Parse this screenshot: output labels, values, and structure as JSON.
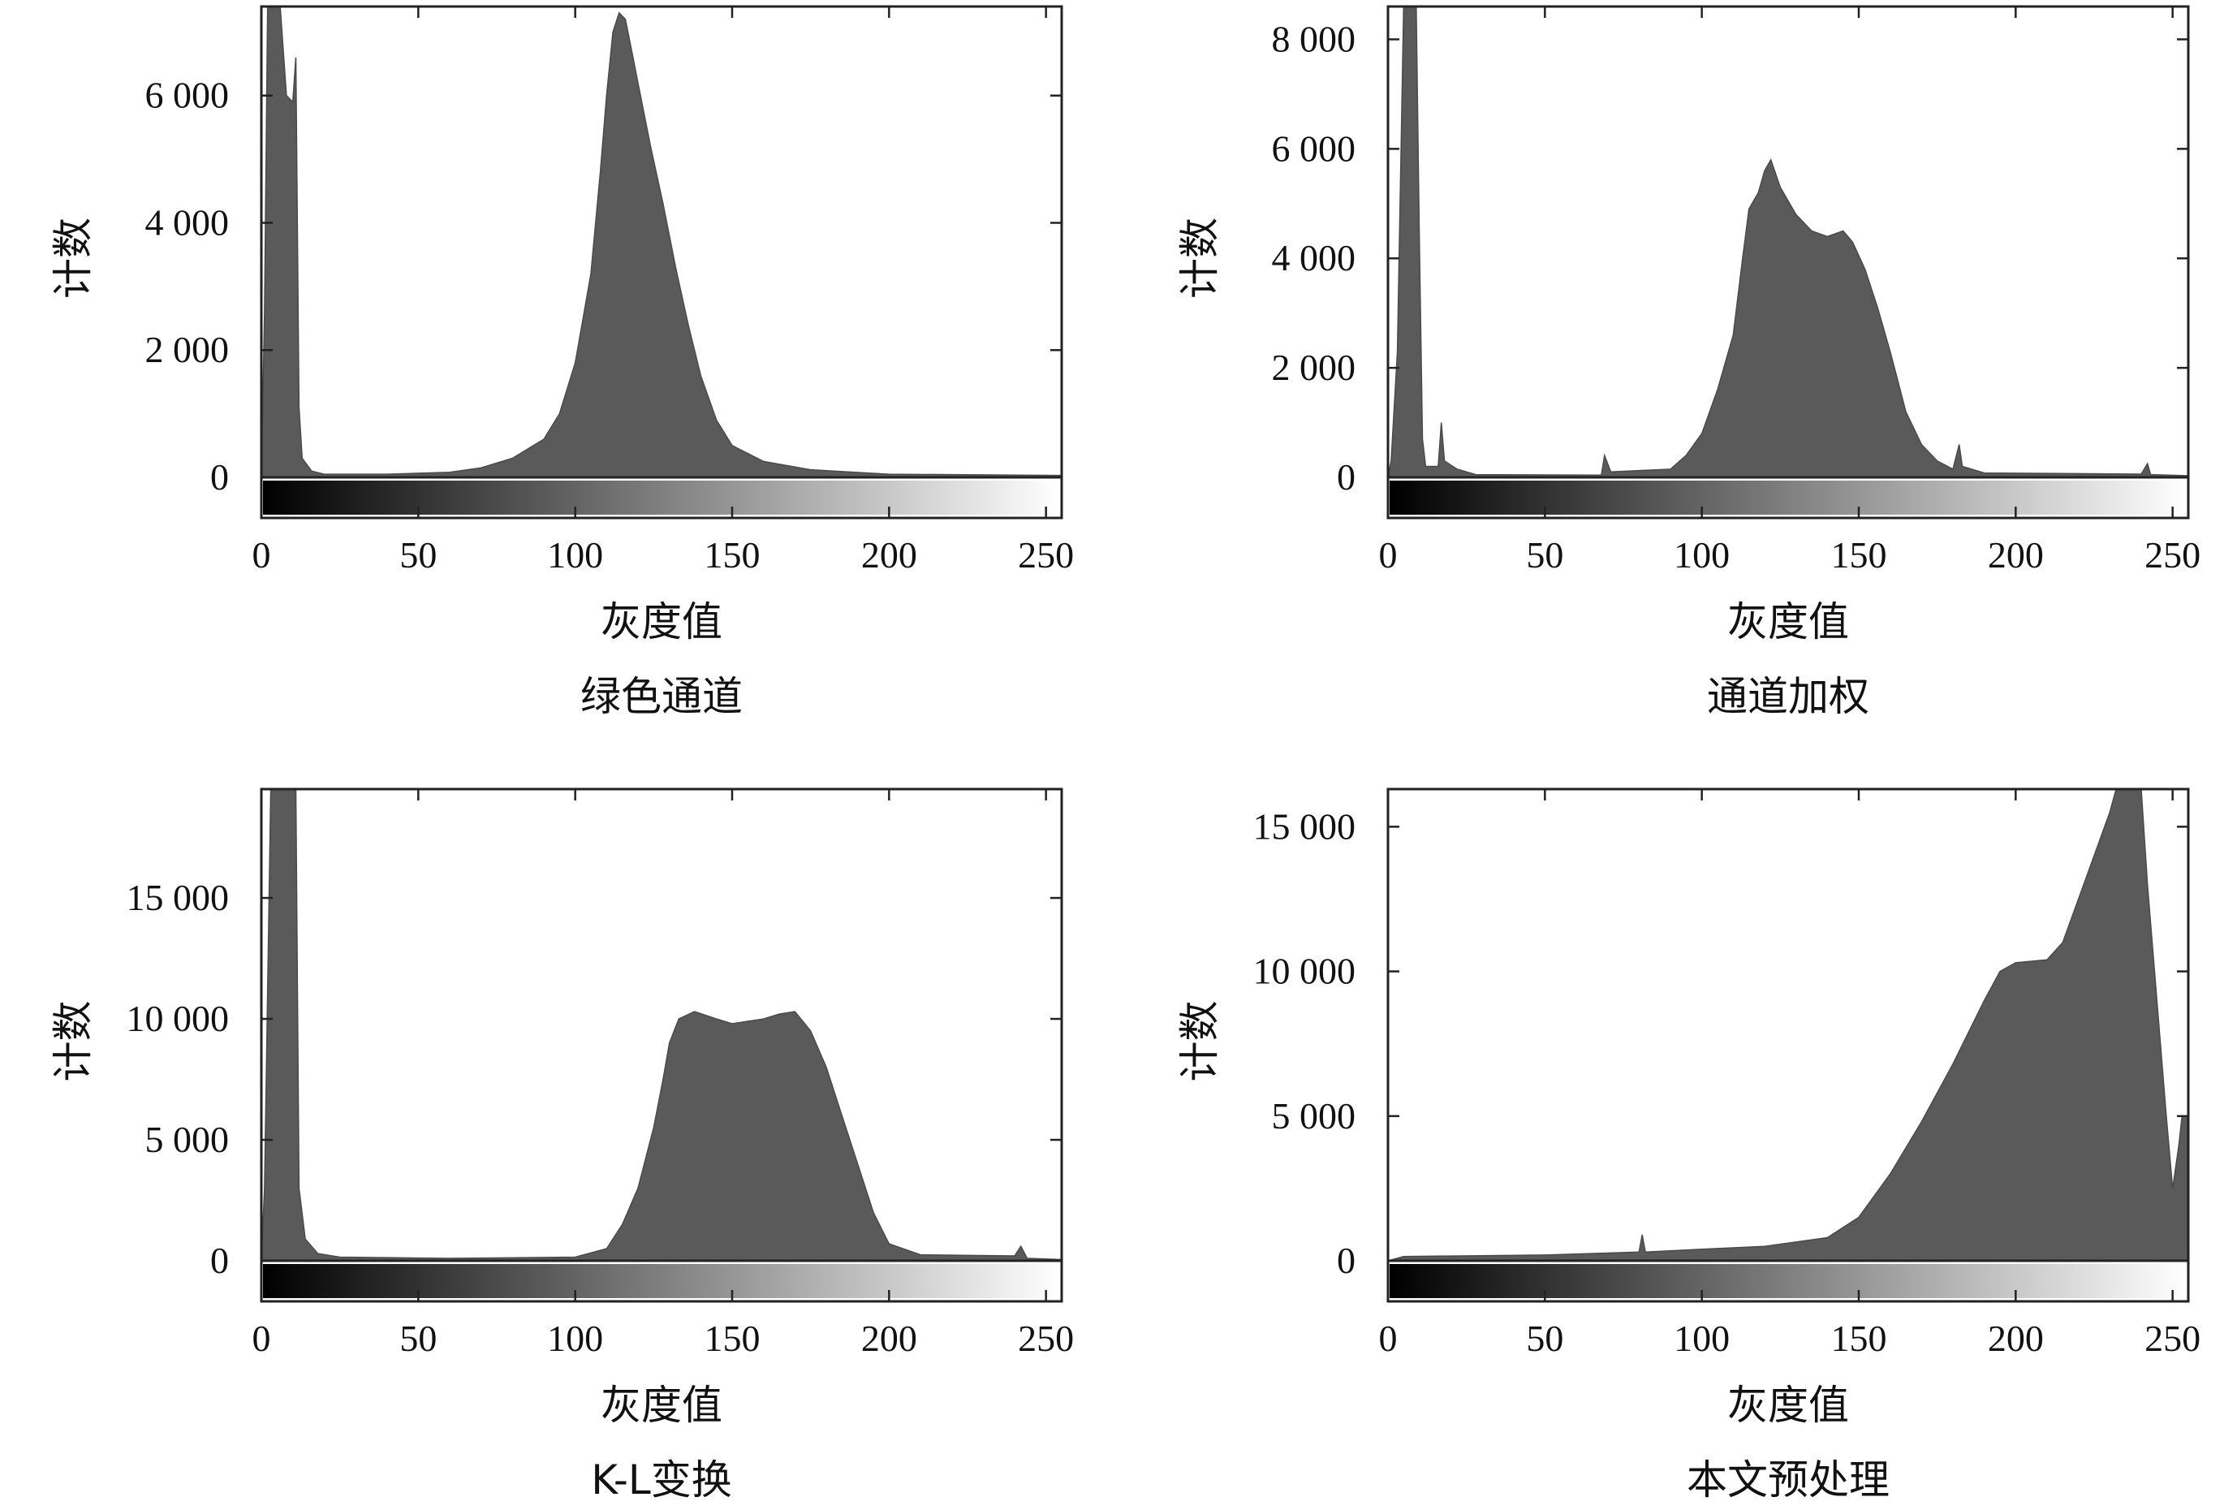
{
  "chart_data": [
    {
      "type": "bar",
      "caption": "绿色通道",
      "xlabel": "灰度值",
      "ylabel": "计数",
      "xlim": [
        0,
        255
      ],
      "ylim": [
        0,
        7400
      ],
      "xticks": [
        "0",
        "50",
        "100",
        "150",
        "200",
        "250"
      ],
      "yticks": [
        {
          "value": 0,
          "label": "0"
        },
        {
          "value": 2000,
          "label": "2 000"
        },
        {
          "value": 4000,
          "label": "4 000"
        },
        {
          "value": 6000,
          "label": "6 000"
        }
      ],
      "profile": [
        [
          0,
          0
        ],
        [
          1,
          2600
        ],
        [
          2,
          7400
        ],
        [
          6,
          7400
        ],
        [
          8,
          6000
        ],
        [
          10,
          5900
        ],
        [
          11,
          6600
        ],
        [
          12,
          1100
        ],
        [
          13,
          300
        ],
        [
          16,
          100
        ],
        [
          20,
          50
        ],
        [
          40,
          50
        ],
        [
          60,
          80
        ],
        [
          70,
          150
        ],
        [
          80,
          300
        ],
        [
          90,
          600
        ],
        [
          95,
          1000
        ],
        [
          100,
          1800
        ],
        [
          105,
          3200
        ],
        [
          108,
          4800
        ],
        [
          110,
          6000
        ],
        [
          112,
          7000
        ],
        [
          114,
          7300
        ],
        [
          116,
          7200
        ],
        [
          118,
          6700
        ],
        [
          120,
          6200
        ],
        [
          124,
          5200
        ],
        [
          128,
          4300
        ],
        [
          132,
          3300
        ],
        [
          136,
          2400
        ],
        [
          140,
          1600
        ],
        [
          145,
          900
        ],
        [
          150,
          500
        ],
        [
          160,
          250
        ],
        [
          175,
          120
        ],
        [
          200,
          50
        ],
        [
          255,
          30
        ]
      ]
    },
    {
      "type": "bar",
      "caption": "通道加权",
      "xlabel": "灰度值",
      "ylabel": "计数",
      "xlim": [
        0,
        255
      ],
      "ylim": [
        0,
        8600
      ],
      "xticks": [
        "0",
        "50",
        "100",
        "150",
        "200",
        "250"
      ],
      "yticks": [
        {
          "value": 0,
          "label": "0"
        },
        {
          "value": 2000,
          "label": "2 000"
        },
        {
          "value": 4000,
          "label": "4 000"
        },
        {
          "value": 6000,
          "label": "6 000"
        },
        {
          "value": 8000,
          "label": "8 000"
        }
      ],
      "profile": [
        [
          0,
          0
        ],
        [
          1,
          300
        ],
        [
          3,
          2300
        ],
        [
          5,
          8600
        ],
        [
          9,
          8600
        ],
        [
          10,
          4300
        ],
        [
          11,
          700
        ],
        [
          12,
          200
        ],
        [
          16,
          200
        ],
        [
          17,
          1000
        ],
        [
          18,
          300
        ],
        [
          22,
          150
        ],
        [
          28,
          50
        ],
        [
          68,
          40
        ],
        [
          69,
          400
        ],
        [
          71,
          100
        ],
        [
          90,
          150
        ],
        [
          95,
          400
        ],
        [
          100,
          800
        ],
        [
          105,
          1600
        ],
        [
          110,
          2600
        ],
        [
          113,
          4000
        ],
        [
          115,
          4900
        ],
        [
          118,
          5200
        ],
        [
          120,
          5600
        ],
        [
          122,
          5800
        ],
        [
          125,
          5300
        ],
        [
          130,
          4800
        ],
        [
          135,
          4500
        ],
        [
          140,
          4400
        ],
        [
          145,
          4500
        ],
        [
          148,
          4300
        ],
        [
          152,
          3800
        ],
        [
          156,
          3100
        ],
        [
          160,
          2300
        ],
        [
          165,
          1200
        ],
        [
          170,
          600
        ],
        [
          175,
          300
        ],
        [
          180,
          150
        ],
        [
          182,
          600
        ],
        [
          183,
          200
        ],
        [
          190,
          80
        ],
        [
          240,
          60
        ],
        [
          242,
          250
        ],
        [
          243,
          50
        ],
        [
          255,
          30
        ]
      ]
    },
    {
      "type": "bar",
      "caption": "K-L变换",
      "xlabel": "灰度值",
      "ylabel": "计数",
      "xlim": [
        0,
        255
      ],
      "ylim": [
        0,
        19500
      ],
      "xticks": [
        "0",
        "50",
        "100",
        "150",
        "200",
        "250"
      ],
      "yticks": [
        {
          "value": 0,
          "label": "0"
        },
        {
          "value": 5000,
          "label": "5 000"
        },
        {
          "value": 10000,
          "label": "10 000"
        },
        {
          "value": 15000,
          "label": "15 000"
        }
      ],
      "profile": [
        [
          0,
          0
        ],
        [
          1,
          3000
        ],
        [
          3,
          19500
        ],
        [
          11,
          19500
        ],
        [
          12,
          3000
        ],
        [
          14,
          900
        ],
        [
          18,
          300
        ],
        [
          25,
          150
        ],
        [
          60,
          100
        ],
        [
          100,
          150
        ],
        [
          110,
          500
        ],
        [
          115,
          1500
        ],
        [
          120,
          3000
        ],
        [
          125,
          5500
        ],
        [
          128,
          7500
        ],
        [
          130,
          9000
        ],
        [
          133,
          10000
        ],
        [
          138,
          10300
        ],
        [
          145,
          10000
        ],
        [
          150,
          9800
        ],
        [
          155,
          9900
        ],
        [
          160,
          10000
        ],
        [
          165,
          10200
        ],
        [
          170,
          10300
        ],
        [
          175,
          9500
        ],
        [
          180,
          8000
        ],
        [
          185,
          6000
        ],
        [
          190,
          4000
        ],
        [
          195,
          2000
        ],
        [
          200,
          700
        ],
        [
          210,
          250
        ],
        [
          240,
          200
        ],
        [
          242,
          600
        ],
        [
          244,
          100
        ],
        [
          255,
          50
        ]
      ]
    },
    {
      "type": "bar",
      "caption": "本文预处理",
      "xlabel": "灰度值",
      "ylabel": "计数",
      "xlim": [
        0,
        255
      ],
      "ylim": [
        0,
        16300
      ],
      "xticks": [
        "0",
        "50",
        "100",
        "150",
        "200",
        "250"
      ],
      "yticks": [
        {
          "value": 0,
          "label": "0"
        },
        {
          "value": 5000,
          "label": "5 000"
        },
        {
          "value": 10000,
          "label": "10 000"
        },
        {
          "value": 15000,
          "label": "15 000"
        }
      ],
      "profile": [
        [
          0,
          0
        ],
        [
          5,
          150
        ],
        [
          50,
          200
        ],
        [
          80,
          300
        ],
        [
          81,
          900
        ],
        [
          82,
          300
        ],
        [
          100,
          400
        ],
        [
          120,
          500
        ],
        [
          140,
          800
        ],
        [
          150,
          1500
        ],
        [
          160,
          3000
        ],
        [
          170,
          4800
        ],
        [
          180,
          6800
        ],
        [
          190,
          9000
        ],
        [
          195,
          10000
        ],
        [
          200,
          10300
        ],
        [
          210,
          10400
        ],
        [
          215,
          11000
        ],
        [
          220,
          12500
        ],
        [
          225,
          14000
        ],
        [
          230,
          15500
        ],
        [
          232,
          16300
        ],
        [
          240,
          16300
        ],
        [
          242,
          13000
        ],
        [
          245,
          9000
        ],
        [
          248,
          5000
        ],
        [
          250,
          2500
        ],
        [
          252,
          4000
        ],
        [
          253,
          5000
        ],
        [
          255,
          5000
        ]
      ]
    }
  ]
}
